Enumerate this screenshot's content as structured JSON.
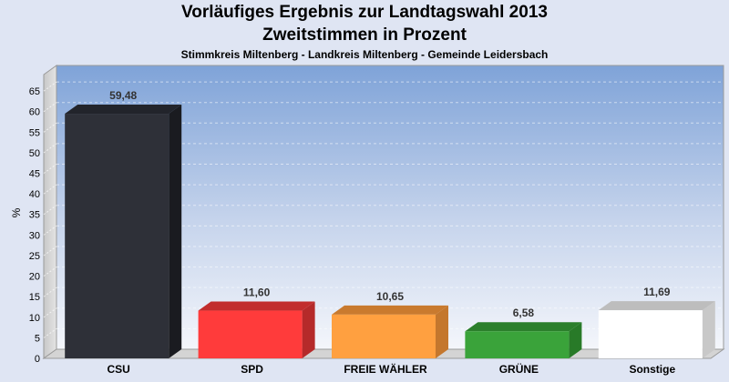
{
  "chart_data": {
    "type": "bar",
    "title": "Vorläufiges Ergebnis zur Landtagswahl 2013",
    "subtitle": "Zweitstimmen in Prozent",
    "subsubtitle": "Stimmkreis Miltenberg - Landkreis Miltenberg - Gemeinde Leidersbach",
    "ylabel": "%",
    "ylim": [
      0,
      69
    ],
    "yticks": [
      0,
      5,
      10,
      15,
      20,
      25,
      30,
      35,
      40,
      45,
      50,
      55,
      60,
      65
    ],
    "grid": true,
    "categories": [
      "CSU",
      "SPD",
      "FREIE WÄHLER",
      "GRÜNE",
      "Sonstige"
    ],
    "values": [
      59.48,
      11.6,
      10.65,
      6.58,
      11.69
    ],
    "value_labels": [
      "59,48",
      "11,60",
      "10,65",
      "6,58",
      "11,69"
    ],
    "colors": [
      "#2e3038",
      "#ff3b3b",
      "#ffa040",
      "#3aa33a",
      "#ffffff"
    ],
    "top_colors": [
      "#22242b",
      "#c22d2d",
      "#c97a2e",
      "#2b7f2b",
      "#bdbdbd"
    ],
    "side_colors": [
      "#1a1b20",
      "#b52a2a",
      "#c4772d",
      "#287a28",
      "#c8c8c8"
    ]
  }
}
